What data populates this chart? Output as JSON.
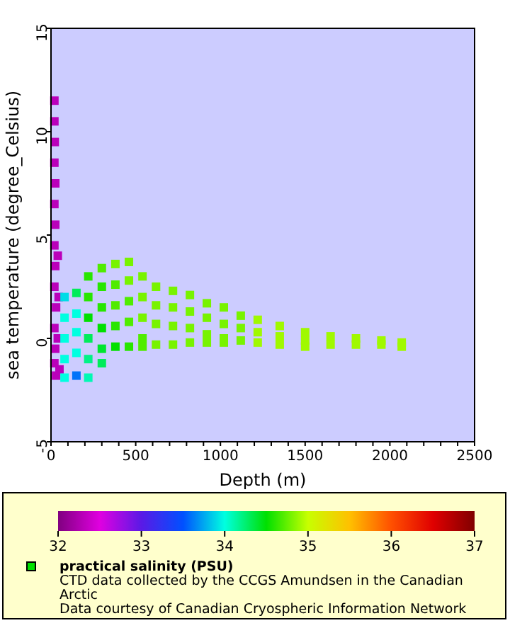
{
  "chart_data": {
    "type": "scatter",
    "xlabel": "Depth (m)",
    "ylabel": "sea temperature (degree_Celsius)",
    "clabel": "practical salinity (PSU)",
    "xlim": [
      0,
      2500
    ],
    "xticks": [
      0,
      {
        "value": 100,
        "label": null
      },
      {
        "value": 200,
        "label": null
      },
      {
        "value": 300,
        "label": null
      },
      {
        "value": 400,
        "label": null
      },
      500,
      {
        "value": 600,
        "label": null
      },
      {
        "value": 700,
        "label": null
      },
      {
        "value": 800,
        "label": null
      },
      {
        "value": 900,
        "label": null
      },
      1000,
      {
        "value": 1100,
        "label": null
      },
      {
        "value": 1200,
        "label": null
      },
      {
        "value": 1300,
        "label": null
      },
      {
        "value": 1400,
        "label": null
      },
      1500,
      {
        "value": 1600,
        "label": null
      },
      {
        "value": 1700,
        "label": null
      },
      {
        "value": 1800,
        "label": null
      },
      {
        "value": 1900,
        "label": null
      },
      2000,
      {
        "value": 2100,
        "label": null
      },
      {
        "value": 2200,
        "label": null
      },
      {
        "value": 2300,
        "label": null
      },
      {
        "value": 2400,
        "label": null
      },
      2500
    ],
    "ylim": [
      -5,
      15
    ],
    "yticks": [
      -5,
      0,
      5,
      10,
      15
    ],
    "clim": [
      32,
      37
    ],
    "cticks": [
      32,
      33,
      34,
      35,
      36,
      37
    ],
    "marker": "square",
    "grid": false,
    "annotations": [
      "CTD data collected by the CCGS Amundsen in the Canadian Arctic",
      "Data courtesy of Canadian Cryospheric Information Network"
    ],
    "series": [
      {
        "color": "#ba00ba",
        "x": [
          20,
          20,
          22,
          20,
          25,
          20,
          25,
          20,
          25,
          20,
          30,
          20,
          25,
          20,
          30,
          40,
          45,
          40,
          50
        ],
        "values": [
          11.5,
          10.5,
          9.5,
          8.5,
          7.5,
          6.5,
          5.5,
          4.5,
          3.5,
          2.5,
          1.5,
          0.5,
          -0.5,
          -1.2,
          -1.8,
          4,
          2,
          0,
          -1.5
        ]
      },
      {
        "x": [
          80,
          80,
          80,
          80,
          80,
          150,
          150,
          150,
          150,
          150,
          220,
          220,
          220,
          220,
          220,
          220,
          300,
          300,
          300,
          300,
          300,
          300,
          380,
          380,
          380,
          380,
          380,
          460,
          460,
          460,
          460,
          460,
          540,
          540,
          540,
          540,
          540,
          620,
          620,
          620,
          620,
          720,
          720,
          720,
          720,
          820,
          820,
          820,
          820,
          920,
          920,
          920,
          920,
          1020,
          1020,
          1020,
          1020,
          1120,
          1120,
          1120,
          1220,
          1220,
          1220,
          1350,
          1350,
          1350,
          1500,
          1500,
          1500,
          1650,
          1650,
          1800,
          1800,
          1950,
          1950,
          2070,
          2070
        ],
        "values": [
          2,
          1,
          0,
          -1,
          -1.9,
          2.2,
          1.2,
          0.3,
          -0.7,
          -1.8,
          3,
          2,
          1,
          0,
          -1,
          -1.9,
          3.4,
          2.5,
          1.5,
          0.5,
          -0.5,
          -1.2,
          3.6,
          2.6,
          1.6,
          0.6,
          -0.4,
          3.7,
          2.8,
          1.8,
          0.8,
          -0.4,
          3,
          2,
          1,
          0,
          -0.4,
          2.5,
          1.6,
          0.7,
          -0.3,
          2.3,
          1.5,
          0.6,
          -0.3,
          2.1,
          1.3,
          0.5,
          -0.2,
          1.7,
          1,
          0.2,
          -0.2,
          1.5,
          0.7,
          0,
          -0.2,
          1.1,
          0.5,
          -0.1,
          0.9,
          0.3,
          -0.2,
          0.6,
          0.1,
          -0.3,
          0.3,
          -0.1,
          -0.4,
          0.1,
          -0.3,
          0,
          -0.3,
          -0.1,
          -0.3,
          -0.2,
          -0.4
        ],
        "colors": [
          "#00dce6",
          "#00ffe0",
          "#00ffe0",
          "#00ffe0",
          "#00ffe0",
          "#00ec5a",
          "#00ffe0",
          "#00ffe0",
          "#00ffe0",
          "#0073f9",
          "#28e600",
          "#28e600",
          "#00e000",
          "#00ec5a",
          "#00f386",
          "#00f9b3",
          "#50ec00",
          "#28e600",
          "#28e600",
          "#00e000",
          "#00e62d",
          "#00ec5a",
          "#78f300",
          "#50ec00",
          "#50ec00",
          "#28e600",
          "#00e000",
          "#78f300",
          "#78f300",
          "#50ec00",
          "#50ec00",
          "#28e600",
          "#78f300",
          "#78f300",
          "#78f300",
          "#50ec00",
          "#50ec00",
          "#78f300",
          "#78f300",
          "#78f300",
          "#78f300",
          "#78f300",
          "#78f300",
          "#78f300",
          "#78f300",
          "#78f300",
          "#78f300",
          "#78f300",
          "#78f300",
          "#78f300",
          "#78f300",
          "#78f300",
          "#78f300",
          "#78f300",
          "#78f300",
          "#78f300",
          "#78f300",
          "#78f300",
          "#78f300",
          "#78f300",
          "#a0f900",
          "#a0f900",
          "#a0f900",
          "#a0f900",
          "#a0f900",
          "#a0f900",
          "#a0f900",
          "#a0f900",
          "#a0f900",
          "#a0f900",
          "#a0f900",
          "#a0f900",
          "#a0f900",
          "#a0f900",
          "#a0f900",
          "#a0f900",
          "#a0f900"
        ]
      }
    ]
  }
}
